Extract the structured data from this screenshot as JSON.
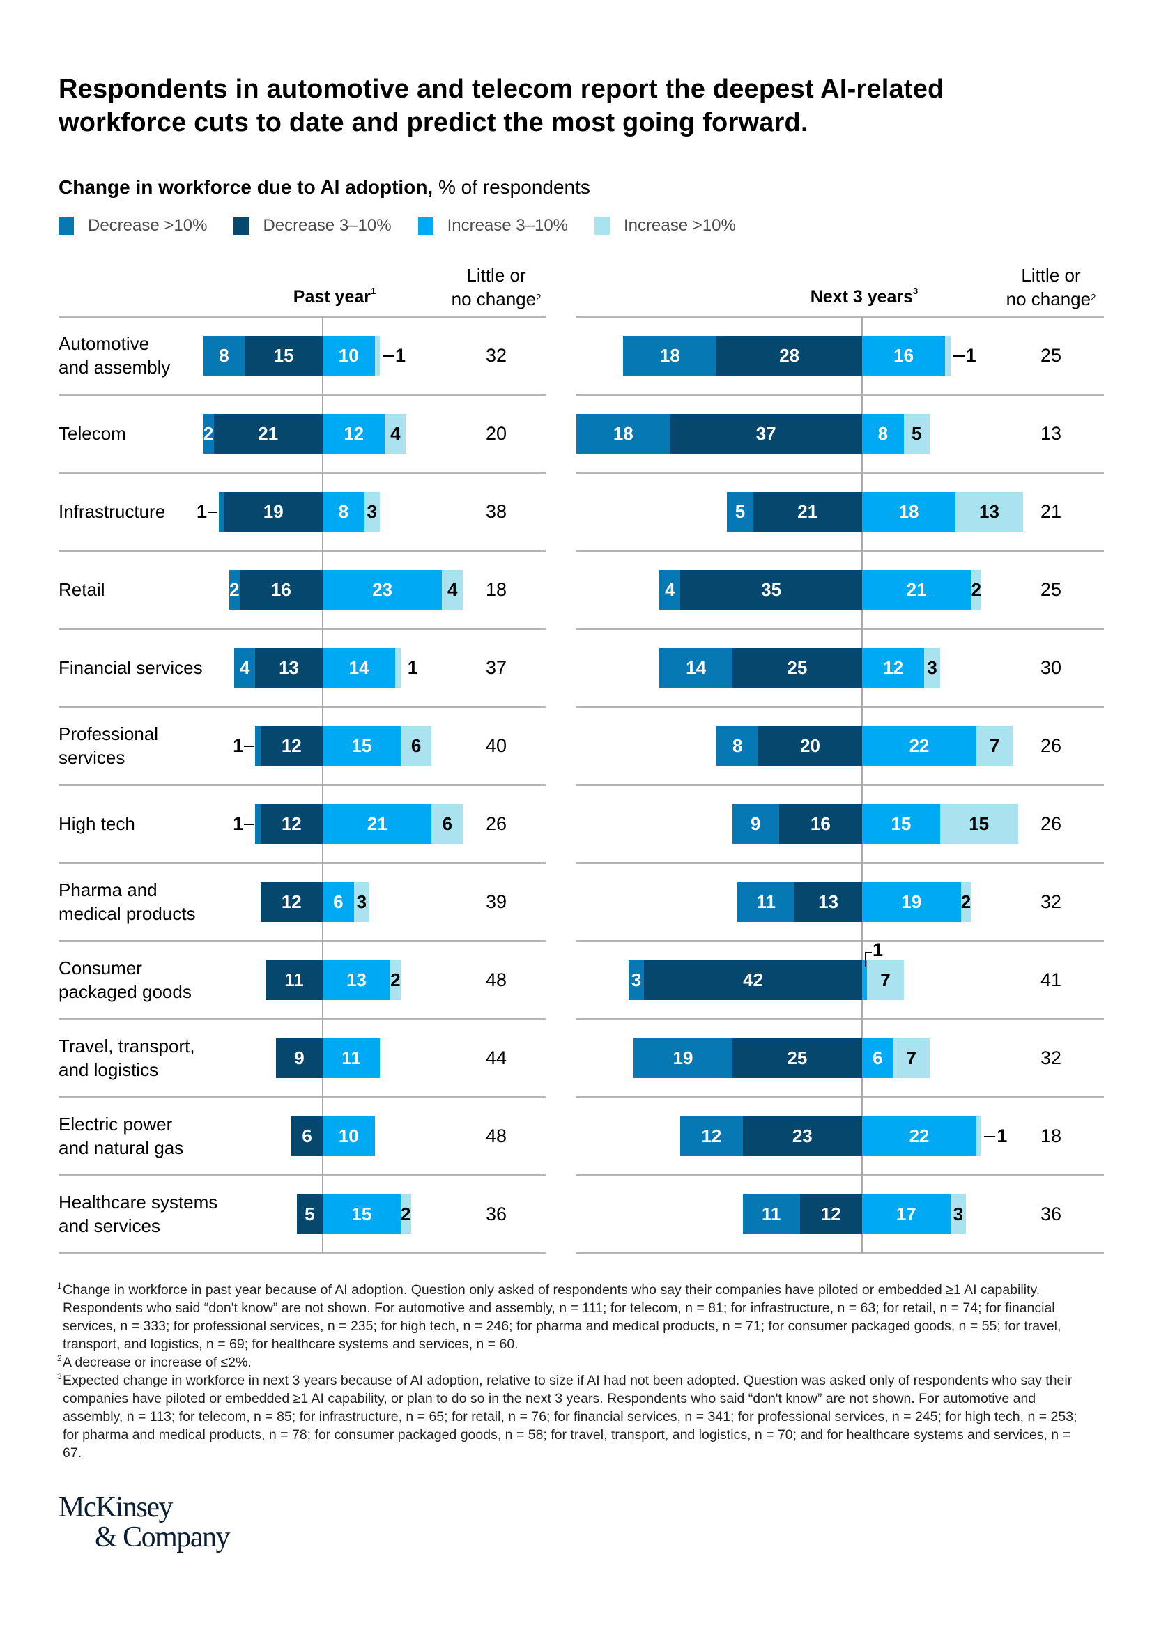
{
  "title": "Respondents in automotive and telecom report the deepest AI-related workforce cuts to date and predict the most going forward.",
  "subtitle_bold": "Change in workforce due to AI adoption,",
  "subtitle_rest": " % of respondents",
  "legend": [
    {
      "label": "Decrease >10%",
      "color": "#0679B4"
    },
    {
      "label": "Decrease 3–10%",
      "color": "#05476D"
    },
    {
      "label": "Increase 3–10%",
      "color": "#00A9F4"
    },
    {
      "label": "Increase >10%",
      "color": "#AAE2F0"
    }
  ],
  "panels": {
    "past": {
      "title": "Past year",
      "sup": "1"
    },
    "next": {
      "title": "Next 3 years",
      "sup": "3"
    },
    "lnc_line1": "Little or",
    "lnc_line2": "no change",
    "lnc_sup": "2"
  },
  "chart_data": {
    "type": "bar",
    "subtype": "diverging-stacked-horizontal",
    "title": "Change in workforce due to AI adoption, % of respondents",
    "categories": [
      "Automotive and assembly",
      "Telecom",
      "Infrastructure",
      "Retail",
      "Financial services",
      "Professional services",
      "High tech",
      "Pharma and medical products",
      "Consumer packaged goods",
      "Travel, transport, and logistics",
      "Electric power and natural gas",
      "Healthcare systems and services"
    ],
    "category_lines": [
      [
        "Automotive",
        "and assembly"
      ],
      [
        "Telecom"
      ],
      [
        "Infrastructure"
      ],
      [
        "Retail"
      ],
      [
        "Financial services"
      ],
      [
        "Professional",
        "services"
      ],
      [
        "High tech"
      ],
      [
        "Pharma and",
        "medical products"
      ],
      [
        "Consumer",
        "packaged goods"
      ],
      [
        "Travel, transport,",
        "and logistics"
      ],
      [
        "Electric power",
        "and natural gas"
      ],
      [
        "Healthcare systems",
        "and services"
      ]
    ],
    "series_names": [
      "Decrease >10%",
      "Decrease 3–10%",
      "Increase 3–10%",
      "Increase >10%",
      "Little or no change"
    ],
    "past_year": {
      "label": "Past year",
      "decrease_gt10": [
        8,
        2,
        1,
        2,
        4,
        1,
        1,
        0,
        0,
        0,
        0,
        0
      ],
      "decrease_3_10": [
        15,
        21,
        19,
        16,
        13,
        12,
        12,
        12,
        11,
        9,
        6,
        5
      ],
      "increase_3_10": [
        10,
        12,
        8,
        23,
        14,
        15,
        21,
        6,
        13,
        11,
        10,
        15
      ],
      "increase_gt10": [
        1,
        4,
        3,
        4,
        1,
        6,
        6,
        3,
        2,
        0,
        0,
        2
      ],
      "little_or_no_change": [
        32,
        20,
        38,
        18,
        37,
        40,
        26,
        39,
        48,
        44,
        48,
        36
      ]
    },
    "next_3_years": {
      "label": "Next 3 years",
      "decrease_gt10": [
        18,
        18,
        5,
        4,
        14,
        8,
        9,
        11,
        3,
        19,
        12,
        11
      ],
      "decrease_3_10": [
        28,
        37,
        21,
        35,
        25,
        20,
        16,
        13,
        42,
        25,
        23,
        12
      ],
      "increase_3_10": [
        16,
        8,
        18,
        21,
        12,
        22,
        15,
        19,
        1,
        6,
        22,
        17
      ],
      "increase_gt10": [
        1,
        5,
        13,
        2,
        3,
        7,
        15,
        2,
        7,
        7,
        1,
        3
      ],
      "little_or_no_change": [
        25,
        13,
        21,
        25,
        30,
        26,
        26,
        32,
        41,
        32,
        18,
        36
      ]
    },
    "xlabel": "",
    "ylabel": "",
    "grid": false,
    "legend_position": "top-left"
  },
  "footnotes": [
    {
      "sup": "1",
      "text": "Change in workforce in past year because of AI adoption. Question only asked of respondents who say their companies have piloted or embedded ≥1 AI capability. Respondents who said “don't know” are not shown. For automotive and assembly, n = 111; for telecom, n = 81; for infrastructure, n = 63; for retail, n = 74; for financial services, n = 333; for professional services, n = 235; for high tech, n = 246; for pharma and medical products, n = 71; for consumer packaged goods, n = 55; for travel, transport, and logistics, n = 69; for healthcare systems and services, n = 60."
    },
    {
      "sup": "2",
      "text": "A decrease or increase of ≤2%."
    },
    {
      "sup": "3",
      "text": "Expected change in workforce in next 3 years because of AI adoption, relative to size if AI had not been adopted. Question was asked only of respondents who say their companies have piloted or embedded ≥1 AI capability, or plan to do so in the next 3 years. Respondents who said “don't know” are not shown. For automotive and assembly, n = 113; for telecom, n = 85; for infrastructure, n = 65; for retail, n = 76; for financial services, n = 341; for professional services, n = 245; for high tech, n = 253; for pharma and medical products, n = 78; for consumer packaged goods, n = 58; for travel, transport, and logistics, n = 70; and for healthcare systems and services, n = 67."
    }
  ],
  "logo": {
    "line1": "McKinsey",
    "line2": "& Company"
  }
}
